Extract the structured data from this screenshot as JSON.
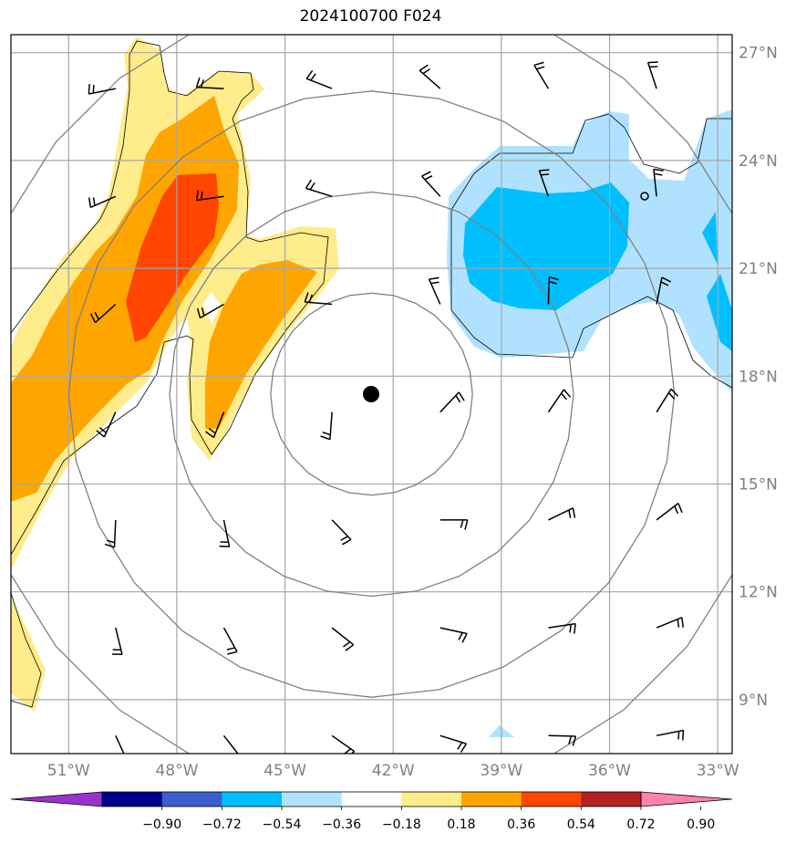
{
  "chart_data": {
    "type": "contour map",
    "title": "2024100700 F024",
    "lon_ticks": [
      -51,
      -48,
      -45,
      -42,
      -39,
      -36,
      -33
    ],
    "lon_tick_labels": [
      "51°W",
      "48°W",
      "45°W",
      "42°W",
      "39°W",
      "36°W",
      "33°W"
    ],
    "lat_ticks": [
      27,
      24,
      21,
      18,
      15,
      12,
      9
    ],
    "lat_tick_labels": [
      "27°N",
      "24°N",
      "21°N",
      "18°N",
      "15°N",
      "12°N",
      "9°N"
    ],
    "xlim": [
      -52.6,
      -32.6
    ],
    "ylim": [
      7.5,
      27.5
    ],
    "grid": true,
    "center": {
      "lon": -42.6,
      "lat": 17.5
    },
    "range_rings_deg": [
      2.8,
      5.6,
      8.4,
      11.2
    ],
    "colorbar": {
      "ticks": [
        -0.9,
        -0.72,
        -0.54,
        -0.36,
        -0.18,
        0.18,
        0.36,
        0.54,
        0.72,
        0.9
      ],
      "tick_labels": [
        "−0.90",
        "−0.72",
        "−0.54",
        "−0.36",
        "−0.18",
        "0.18",
        "0.36",
        "0.54",
        "0.72",
        "0.90"
      ],
      "colors": [
        "#9932cc",
        "#00008b",
        "#3a5fcd",
        "#00bfff",
        "#b0e2ff",
        "#ffffff",
        "#ffec8b",
        "#ffa500",
        "#ff4500",
        "#b22222",
        "#ff82ab"
      ],
      "extend": "both"
    }
  }
}
